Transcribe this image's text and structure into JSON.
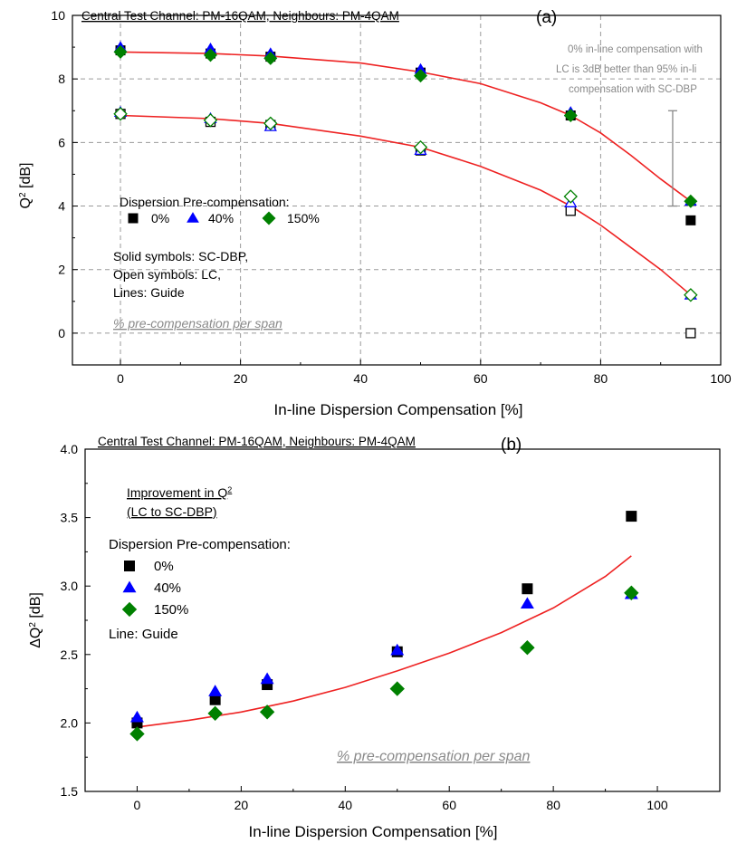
{
  "chart_data": [
    {
      "type": "scatter",
      "panel_label": "(a)",
      "header": "Central Test Channel: PM-16QAM, Neighbours: PM-4QAM",
      "xlabel": "In-line  Dispersion Compensation [%]",
      "ylabel": "Q",
      "ylabel_sup": "2",
      "ylabel_unit": " [dB]",
      "xlim": [
        -8,
        100
      ],
      "ylim": [
        -1,
        10
      ],
      "xticks": [
        0,
        20,
        40,
        60,
        80,
        100
      ],
      "yticks": [
        0,
        2,
        4,
        6,
        8,
        10
      ],
      "grid": true,
      "legend_title": "Dispersion Pre-compensation:",
      "legend_items": [
        "0%",
        "40%",
        "150%"
      ],
      "notes": [
        "Solid symbols: SC-DBP,",
        "Open symbols: LC,",
        "Lines: Guide"
      ],
      "footer_note": "% pre-compensation per span",
      "annotation_lines": [
        "0% in-line compensation with",
        "LC is 3dB better than 95% in-li",
        "compensation with SC-DBP"
      ],
      "x": [
        0,
        15,
        25,
        50,
        75,
        95
      ],
      "series": [
        {
          "name": "0%",
          "method": "SC-DBP",
          "marker": "square",
          "filled": true,
          "color": "#000000",
          "values": [
            8.9,
            8.8,
            8.7,
            8.2,
            6.85,
            3.55
          ]
        },
        {
          "name": "40%",
          "method": "SC-DBP",
          "marker": "triangle",
          "filled": true,
          "color": "#0000ff",
          "values": [
            9.0,
            8.95,
            8.8,
            8.3,
            6.95,
            4.15
          ]
        },
        {
          "name": "150%",
          "method": "SC-DBP",
          "marker": "diamond",
          "filled": true,
          "color": "#008000",
          "values": [
            8.85,
            8.75,
            8.65,
            8.1,
            6.85,
            4.15
          ]
        },
        {
          "name": "0%",
          "method": "LC",
          "marker": "square",
          "filled": false,
          "color": "#000000",
          "values": [
            6.9,
            6.65,
            6.55,
            5.75,
            3.85,
            0.0
          ]
        },
        {
          "name": "40%",
          "method": "LC",
          "marker": "triangle",
          "filled": false,
          "color": "#0000ff",
          "values": [
            6.95,
            6.75,
            6.5,
            5.75,
            4.1,
            1.2
          ]
        },
        {
          "name": "150%",
          "method": "LC",
          "marker": "diamond",
          "filled": false,
          "color": "#008000",
          "values": [
            6.9,
            6.7,
            6.6,
            5.85,
            4.3,
            1.2
          ]
        }
      ],
      "guide_lines": [
        {
          "color": "#ee2222",
          "x": [
            0,
            15,
            25,
            40,
            50,
            60,
            70,
            75,
            80,
            85,
            90,
            95
          ],
          "y": [
            8.85,
            8.8,
            8.72,
            8.5,
            8.22,
            7.85,
            7.25,
            6.85,
            6.3,
            5.6,
            4.85,
            4.15
          ]
        },
        {
          "color": "#ee2222",
          "x": [
            0,
            15,
            25,
            40,
            50,
            60,
            70,
            75,
            80,
            85,
            90,
            95
          ],
          "y": [
            6.85,
            6.75,
            6.6,
            6.2,
            5.85,
            5.25,
            4.5,
            4.0,
            3.4,
            2.7,
            2.0,
            1.2
          ]
        }
      ],
      "error_bar": {
        "x": 92,
        "ymin": 4.0,
        "ymax": 7.0,
        "color": "#888888"
      }
    },
    {
      "type": "scatter",
      "panel_label": "(b)",
      "header": "Central Test Channel: PM-16QAM, Neighbours: PM-4QAM",
      "xlabel": "In-line  Dispersion Compensation [%]",
      "ylabel": "ΔQ",
      "ylabel_sup": "2",
      "ylabel_unit": " [dB]",
      "xlim": [
        -10,
        112
      ],
      "ylim": [
        1.5,
        4.0
      ],
      "xticks": [
        0,
        20,
        40,
        60,
        80,
        100
      ],
      "yticks": [
        1.5,
        2.0,
        2.5,
        3.0,
        3.5,
        4.0
      ],
      "grid": false,
      "improvement_title": "Improvement in Q",
      "improvement_title_sup": "2",
      "improvement_subtitle": "(LC to SC-DBP)",
      "legend_title": "Dispersion Pre-compensation:",
      "legend_items": [
        "0%",
        "40%",
        "150%"
      ],
      "notes": [
        "Line: Guide"
      ],
      "footer_note": "% pre-compensation per span",
      "x": [
        0,
        15,
        25,
        50,
        75,
        95
      ],
      "series": [
        {
          "name": "0%",
          "marker": "square",
          "filled": true,
          "color": "#000000",
          "values": [
            2.0,
            2.17,
            2.28,
            2.52,
            2.98,
            3.51
          ]
        },
        {
          "name": "40%",
          "marker": "triangle",
          "filled": true,
          "color": "#0000ff",
          "values": [
            2.04,
            2.23,
            2.32,
            2.53,
            2.87,
            2.94
          ]
        },
        {
          "name": "150%",
          "marker": "diamond",
          "filled": true,
          "color": "#008000",
          "values": [
            1.92,
            2.07,
            2.08,
            2.25,
            2.55,
            2.95
          ]
        }
      ],
      "guide_lines": [
        {
          "color": "#ee2222",
          "x": [
            0,
            10,
            20,
            30,
            40,
            50,
            60,
            70,
            80,
            90,
            95
          ],
          "y": [
            1.97,
            2.02,
            2.08,
            2.16,
            2.26,
            2.38,
            2.51,
            2.66,
            2.84,
            3.07,
            3.22
          ]
        }
      ]
    }
  ]
}
